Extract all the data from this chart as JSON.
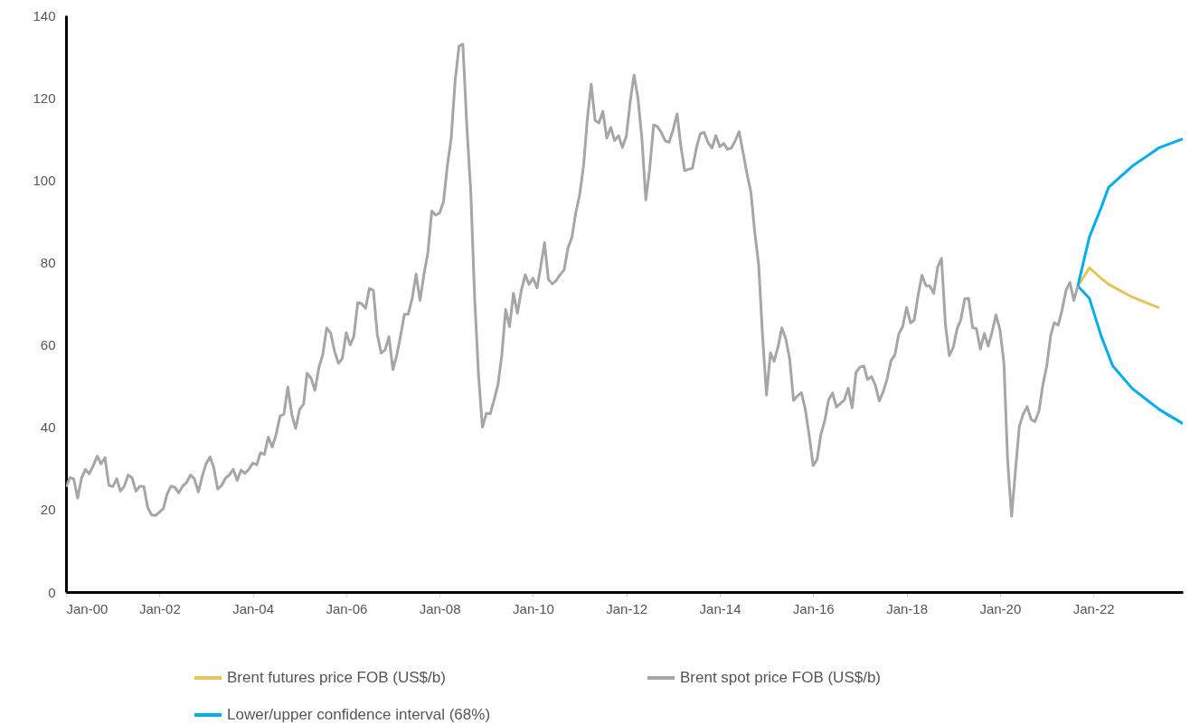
{
  "chart_data": {
    "type": "line",
    "xlim": [
      "2000-01",
      "2023-12"
    ],
    "xticks": [
      {
        "value": "2000-01",
        "label": "Jan-00"
      },
      {
        "value": "2002-01",
        "label": "Jan-02"
      },
      {
        "value": "2004-01",
        "label": "Jan-04"
      },
      {
        "value": "2006-01",
        "label": "Jan-06"
      },
      {
        "value": "2008-01",
        "label": "Jan-08"
      },
      {
        "value": "2010-01",
        "label": "Jan-10"
      },
      {
        "value": "2012-01",
        "label": "Jan-12"
      },
      {
        "value": "2014-01",
        "label": "Jan-14"
      },
      {
        "value": "2016-01",
        "label": "Jan-16"
      },
      {
        "value": "2018-01",
        "label": "Jan-18"
      },
      {
        "value": "2020-01",
        "label": "Jan-20"
      },
      {
        "value": "2022-01",
        "label": "Jan-22"
      }
    ],
    "ylim": [
      0,
      140
    ],
    "yticks": [
      0,
      20,
      40,
      60,
      80,
      100,
      120,
      140
    ],
    "grid": false,
    "legend": "bottom",
    "series": [
      {
        "name": "Brent futures price FOB (US$/b)",
        "color": "#e6c35c",
        "x": [
          "2021-09",
          "2021-12",
          "2022-03",
          "2022-05",
          "2022-11",
          "2023-06"
        ],
        "values": [
          74.3,
          78.7,
          76.2,
          74.7,
          71.6,
          69.0
        ]
      },
      {
        "name": "Lower/upper confidence interval (68%)",
        "color": "#00aeef",
        "x": [
          "2021-09",
          "2021-12",
          "2022-03",
          "2022-05",
          "2022-11",
          "2023-06",
          "2023-12"
        ],
        "values": [
          74.3,
          86.2,
          93.2,
          98.3,
          103.4,
          107.9,
          110.0
        ]
      },
      {
        "color": "#00aeef",
        "x": [
          "2021-09",
          "2021-12",
          "2022-03",
          "2022-06",
          "2022-11",
          "2023-06",
          "2023-12"
        ],
        "values": [
          74.3,
          71.3,
          62.3,
          54.9,
          49.4,
          44.3,
          40.9
        ]
      },
      {
        "name": "Brent spot price FOB (US$/b)",
        "color": "#a6a6a6",
        "x": [
          "2000-01",
          "2000-02",
          "2000-03",
          "2000-04",
          "2000-05",
          "2000-06",
          "2000-07",
          "2000-08",
          "2000-09",
          "2000-10",
          "2000-11",
          "2000-12",
          "2001-01",
          "2001-02",
          "2001-03",
          "2001-04",
          "2001-05",
          "2001-06",
          "2001-07",
          "2001-08",
          "2001-09",
          "2001-10",
          "2001-11",
          "2001-12",
          "2002-01",
          "2002-02",
          "2002-03",
          "2002-04",
          "2002-05",
          "2002-06",
          "2002-07",
          "2002-08",
          "2002-09",
          "2002-10",
          "2002-11",
          "2002-12",
          "2003-01",
          "2003-02",
          "2003-03",
          "2003-04",
          "2003-05",
          "2003-06",
          "2003-07",
          "2003-08",
          "2003-09",
          "2003-10",
          "2003-11",
          "2003-12",
          "2004-01",
          "2004-02",
          "2004-03",
          "2004-04",
          "2004-05",
          "2004-06",
          "2004-07",
          "2004-08",
          "2004-09",
          "2004-10",
          "2004-11",
          "2004-12",
          "2005-01",
          "2005-02",
          "2005-03",
          "2005-04",
          "2005-05",
          "2005-06",
          "2005-07",
          "2005-08",
          "2005-09",
          "2005-10",
          "2005-11",
          "2005-12",
          "2006-01",
          "2006-02",
          "2006-03",
          "2006-04",
          "2006-05",
          "2006-06",
          "2006-07",
          "2006-08",
          "2006-09",
          "2006-10",
          "2006-11",
          "2006-12",
          "2007-01",
          "2007-02",
          "2007-03",
          "2007-04",
          "2007-05",
          "2007-06",
          "2007-07",
          "2007-08",
          "2007-09",
          "2007-10",
          "2007-11",
          "2007-12",
          "2008-01",
          "2008-02",
          "2008-03",
          "2008-04",
          "2008-05",
          "2008-06",
          "2008-07",
          "2008-08",
          "2008-09",
          "2008-10",
          "2008-11",
          "2008-12",
          "2009-01",
          "2009-02",
          "2009-03",
          "2009-04",
          "2009-05",
          "2009-06",
          "2009-07",
          "2009-08",
          "2009-09",
          "2009-10",
          "2009-11",
          "2009-12",
          "2010-01",
          "2010-02",
          "2010-03",
          "2010-04",
          "2010-05",
          "2010-06",
          "2010-07",
          "2010-08",
          "2010-09",
          "2010-10",
          "2010-11",
          "2010-12",
          "2011-01",
          "2011-02",
          "2011-03",
          "2011-04",
          "2011-05",
          "2011-06",
          "2011-07",
          "2011-08",
          "2011-09",
          "2011-10",
          "2011-11",
          "2011-12",
          "2012-01",
          "2012-02",
          "2012-03",
          "2012-04",
          "2012-05",
          "2012-06",
          "2012-07",
          "2012-08",
          "2012-09",
          "2012-10",
          "2012-11",
          "2012-12",
          "2013-01",
          "2013-02",
          "2013-03",
          "2013-04",
          "2013-05",
          "2013-06",
          "2013-07",
          "2013-08",
          "2013-09",
          "2013-10",
          "2013-11",
          "2013-12",
          "2014-01",
          "2014-02",
          "2014-03",
          "2014-04",
          "2014-05",
          "2014-06",
          "2014-07",
          "2014-08",
          "2014-09",
          "2014-10",
          "2014-11",
          "2014-12",
          "2015-01",
          "2015-02",
          "2015-03",
          "2015-04",
          "2015-05",
          "2015-06",
          "2015-07",
          "2015-08",
          "2015-09",
          "2015-10",
          "2015-11",
          "2015-12",
          "2016-01",
          "2016-02",
          "2016-03",
          "2016-04",
          "2016-05",
          "2016-06",
          "2016-07",
          "2016-08",
          "2016-09",
          "2016-10",
          "2016-11",
          "2016-12",
          "2017-01",
          "2017-02",
          "2017-03",
          "2017-04",
          "2017-05",
          "2017-06",
          "2017-07",
          "2017-08",
          "2017-09",
          "2017-10",
          "2017-11",
          "2017-12",
          "2018-01",
          "2018-02",
          "2018-03",
          "2018-04",
          "2018-05",
          "2018-06",
          "2018-07",
          "2018-08",
          "2018-09",
          "2018-10",
          "2018-11",
          "2018-12",
          "2019-01",
          "2019-02",
          "2019-03",
          "2019-04",
          "2019-05",
          "2019-06",
          "2019-07",
          "2019-08",
          "2019-09",
          "2019-10",
          "2019-11",
          "2019-12",
          "2020-01",
          "2020-02",
          "2020-03",
          "2020-04",
          "2020-05",
          "2020-06",
          "2020-07",
          "2020-08",
          "2020-09",
          "2020-10",
          "2020-11",
          "2020-12",
          "2021-01",
          "2021-02",
          "2021-03",
          "2021-04",
          "2021-05",
          "2021-06",
          "2021-07",
          "2021-08",
          "2021-09"
        ],
        "values": [
          25.5,
          27.8,
          27.5,
          22.8,
          27.6,
          29.8,
          28.7,
          30.7,
          33.0,
          31.1,
          32.6,
          25.9,
          25.6,
          27.5,
          24.5,
          25.7,
          28.4,
          27.7,
          24.5,
          25.7,
          25.6,
          20.5,
          18.7,
          18.6,
          19.4,
          20.3,
          23.7,
          25.7,
          25.4,
          24.1,
          25.7,
          26.6,
          28.4,
          27.5,
          24.3,
          28.0,
          31.2,
          32.8,
          30.3,
          25.0,
          25.8,
          27.6,
          28.4,
          29.8,
          27.1,
          29.6,
          28.8,
          29.8,
          31.3,
          30.9,
          33.8,
          33.4,
          37.6,
          35.2,
          38.2,
          42.7,
          43.2,
          49.8,
          43.1,
          39.7,
          44.3,
          45.6,
          53.1,
          51.9,
          49.0,
          54.5,
          57.6,
          64.1,
          62.9,
          58.5,
          55.5,
          56.7,
          63.0,
          60.0,
          62.0,
          70.3,
          70.0,
          68.9,
          73.7,
          73.2,
          62.5,
          58.0,
          58.8,
          62.0,
          54.0,
          57.6,
          62.1,
          67.4,
          67.5,
          71.3,
          77.2,
          70.8,
          77.2,
          82.3,
          92.5,
          91.5,
          92.0,
          94.8,
          103.3,
          110.2,
          123.9,
          132.5,
          133.0,
          113.2,
          97.2,
          71.6,
          52.5,
          40.0,
          43.4,
          43.3,
          46.5,
          50.2,
          57.3,
          68.6,
          64.4,
          72.5,
          67.7,
          73.2,
          77.0,
          74.7,
          76.2,
          73.8,
          78.8,
          84.8,
          75.9,
          74.8,
          75.6,
          77.1,
          78.2,
          83.5,
          86.1,
          92.0,
          96.5,
          103.7,
          114.6,
          123.3,
          114.5,
          113.9,
          116.7,
          110.2,
          112.8,
          109.6,
          110.8,
          107.9,
          110.7,
          119.3,
          125.5,
          119.8,
          110.3,
          95.2,
          102.6,
          113.4,
          113.0,
          111.5,
          109.5,
          109.2,
          112.3,
          116.1,
          108.5,
          102.3,
          102.6,
          102.9,
          107.7,
          111.3,
          111.6,
          109.1,
          107.8,
          110.8,
          108.1,
          108.9,
          107.5,
          107.8,
          109.5,
          111.8,
          106.8,
          101.6,
          97.1,
          87.4,
          79.4,
          62.3,
          47.8,
          58.1,
          56.0,
          59.5,
          64.1,
          61.5,
          56.6,
          46.5,
          47.6,
          48.4,
          44.3,
          38.0,
          30.7,
          32.2,
          38.2,
          41.6,
          46.7,
          48.3,
          44.9,
          45.8,
          46.6,
          49.5,
          44.7,
          53.3,
          54.6,
          54.9,
          51.6,
          52.3,
          50.3,
          46.4,
          48.5,
          51.7,
          56.2,
          57.5,
          62.7,
          64.4,
          69.1,
          65.3,
          66.0,
          72.1,
          76.9,
          74.4,
          74.3,
          72.5,
          78.9,
          81.0,
          64.8,
          57.4,
          59.4,
          64.0,
          66.1,
          71.2,
          71.3,
          64.2,
          63.9,
          59.0,
          62.8,
          59.7,
          63.2,
          67.3,
          63.7,
          55.7,
          32.0,
          18.4,
          29.4,
          40.3,
          43.2,
          45.0,
          41.9,
          41.4,
          43.9,
          50.2,
          54.8,
          62.3,
          65.4,
          64.8,
          68.5,
          73.2,
          75.2,
          70.8,
          74.3
        ]
      }
    ]
  }
}
